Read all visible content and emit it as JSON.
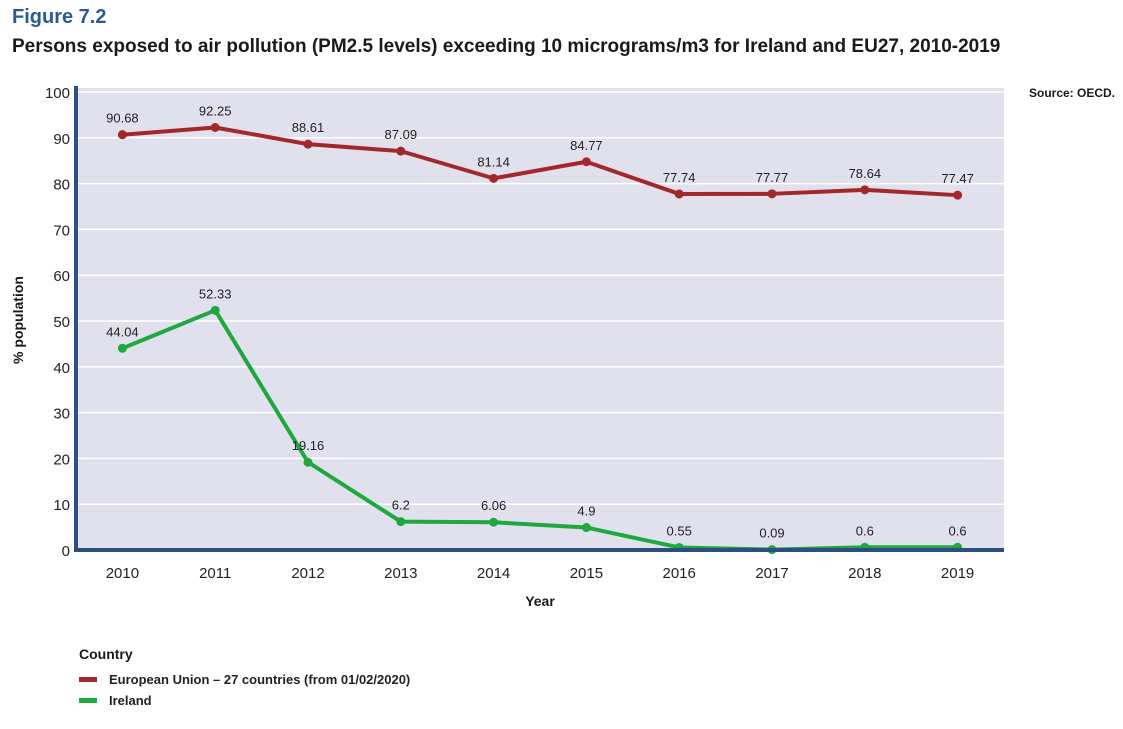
{
  "figure_label": "Figure 7.2",
  "source": "Source: OECD.",
  "chart_data": {
    "type": "line",
    "title": "Persons exposed to air pollution (PM2.5 levels) exceeding 10 micrograms/m3 for Ireland and EU27, 2010-2019",
    "xlabel": "Year",
    "ylabel": "% population",
    "ylim": [
      0,
      100
    ],
    "yticks": [
      "0",
      "10",
      "20",
      "30",
      "40",
      "50",
      "60",
      "70",
      "80",
      "90",
      "100"
    ],
    "categories": [
      "2010",
      "2011",
      "2012",
      "2013",
      "2014",
      "2015",
      "2016",
      "2017",
      "2018",
      "2019"
    ],
    "grid": true,
    "legend_title": "Country",
    "legend_position": "bottom-left",
    "series": [
      {
        "name": "European Union – 27 countries (from 01/02/2020)",
        "color": "#a3282b",
        "values": [
          90.68,
          92.25,
          88.61,
          87.09,
          81.14,
          84.77,
          77.74,
          77.77,
          78.64,
          77.47
        ],
        "labels": [
          "90.68",
          "92.25",
          "88.61",
          "87.09",
          "81.14",
          "84.77",
          "77.74",
          "77.77",
          "78.64",
          "77.47"
        ]
      },
      {
        "name": "Ireland",
        "color": "#1fa83f",
        "values": [
          44.04,
          52.33,
          19.16,
          6.2,
          6.06,
          4.9,
          0.55,
          0.09,
          0.6,
          0.6
        ],
        "labels": [
          "44.04",
          "52.33",
          "19.16",
          "6.2",
          "6.06",
          "4.9",
          "0.55",
          "0.09",
          "0.6",
          "0.6"
        ]
      }
    ]
  }
}
